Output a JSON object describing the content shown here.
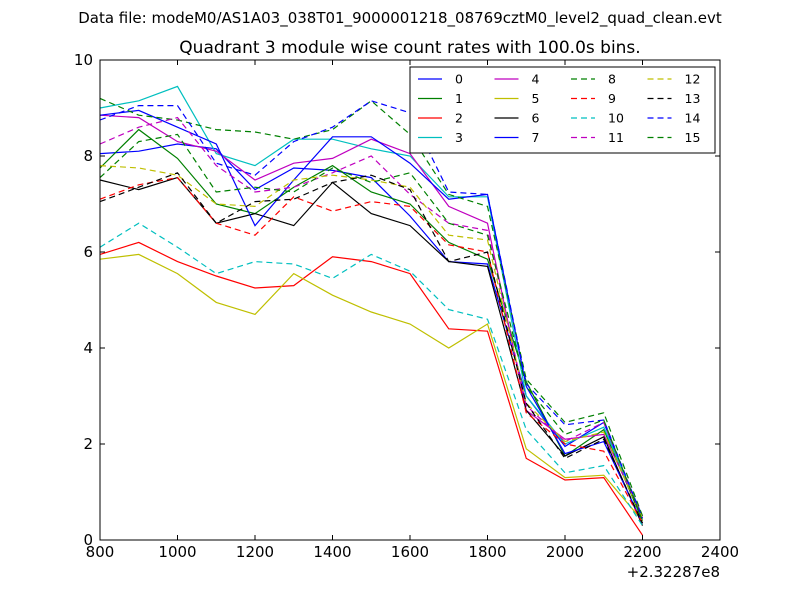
{
  "figure": {
    "suptitle": "Data file: modeM0/AS1A03_038T01_9000001218_08769cztM0_level2_quad_clean.evt"
  },
  "chart_data": {
    "type": "line",
    "title": "Quadrant 3 module wise count rates with 100.0s bins.",
    "xlabel": "",
    "ylabel": "",
    "xlim": [
      800,
      2400
    ],
    "ylim": [
      0,
      10
    ],
    "x_offset_label": "+2.32287e8",
    "xticks": [
      "800",
      "1000",
      "1200",
      "1400",
      "1600",
      "1800",
      "2000",
      "2200",
      "2400"
    ],
    "yticks": [
      "0",
      "2",
      "4",
      "6",
      "8",
      "10"
    ],
    "grid": false,
    "legend_position": "top-right",
    "legend_columns": 4,
    "x": [
      800,
      900,
      1000,
      1100,
      1200,
      1300,
      1400,
      1500,
      1600,
      1700,
      1800,
      1900,
      2000,
      2100,
      2200
    ],
    "series": [
      {
        "name": "0",
        "color": "#0000ff",
        "dash": false,
        "values": [
          8.05,
          8.1,
          8.25,
          8.15,
          7.3,
          7.75,
          7.7,
          7.55,
          6.75,
          5.8,
          5.75,
          3.0,
          1.95,
          2.45,
          0.4
        ]
      },
      {
        "name": "1",
        "color": "#008000",
        "dash": false,
        "values": [
          7.75,
          8.55,
          7.95,
          7.0,
          6.8,
          7.35,
          7.8,
          7.25,
          7.0,
          6.2,
          5.85,
          3.3,
          1.75,
          2.3,
          0.4
        ]
      },
      {
        "name": "2",
        "color": "#ff0000",
        "dash": false,
        "values": [
          5.95,
          6.2,
          5.8,
          5.5,
          5.25,
          5.3,
          5.9,
          5.8,
          5.55,
          4.4,
          4.35,
          1.7,
          1.25,
          1.3,
          0.1
        ]
      },
      {
        "name": "3",
        "color": "#00bfbf",
        "dash": false,
        "values": [
          9.0,
          9.15,
          9.45,
          8.05,
          7.8,
          8.35,
          8.35,
          8.15,
          8.0,
          7.15,
          7.15,
          3.0,
          2.0,
          2.35,
          0.5
        ]
      },
      {
        "name": "4",
        "color": "#bf00bf",
        "dash": false,
        "values": [
          8.85,
          8.8,
          8.3,
          8.1,
          7.5,
          7.85,
          7.95,
          8.35,
          8.05,
          6.95,
          6.6,
          2.7,
          2.1,
          2.2,
          0.5
        ]
      },
      {
        "name": "5",
        "color": "#bfbf00",
        "dash": false,
        "values": [
          5.85,
          5.95,
          5.55,
          4.95,
          4.7,
          5.55,
          5.1,
          4.75,
          4.5,
          4.0,
          4.5,
          1.9,
          1.3,
          1.35,
          0.4
        ]
      },
      {
        "name": "6",
        "color": "#000000",
        "dash": false,
        "values": [
          7.5,
          7.3,
          7.55,
          6.6,
          6.8,
          6.55,
          7.45,
          6.8,
          6.55,
          5.8,
          5.7,
          2.7,
          1.75,
          2.15,
          0.3
        ]
      },
      {
        "name": "7",
        "color": "#0000ff",
        "dash": false,
        "values": [
          8.85,
          8.95,
          8.6,
          8.25,
          6.55,
          7.5,
          8.4,
          8.4,
          7.85,
          7.1,
          7.2,
          3.2,
          1.8,
          2.05,
          0.35
        ]
      },
      {
        "name": "8",
        "color": "#008000",
        "dash": true,
        "values": [
          9.2,
          8.85,
          8.75,
          8.55,
          8.5,
          8.35,
          8.55,
          9.15,
          8.45,
          7.2,
          6.95,
          3.35,
          2.45,
          2.65,
          0.5
        ]
      },
      {
        "name": "9",
        "color": "#ff0000",
        "dash": true,
        "values": [
          7.1,
          7.4,
          7.55,
          6.6,
          6.35,
          7.15,
          6.85,
          7.05,
          6.95,
          6.15,
          6.0,
          2.65,
          2.0,
          1.85,
          0.35
        ]
      },
      {
        "name": "10",
        "color": "#00bfbf",
        "dash": true,
        "values": [
          6.1,
          6.6,
          6.1,
          5.55,
          5.8,
          5.75,
          5.45,
          5.95,
          5.6,
          4.8,
          4.6,
          2.3,
          1.4,
          1.55,
          0.3
        ]
      },
      {
        "name": "11",
        "color": "#bf00bf",
        "dash": true,
        "values": [
          8.25,
          8.6,
          8.8,
          7.8,
          7.25,
          7.35,
          7.65,
          8.0,
          7.2,
          6.6,
          6.45,
          2.8,
          2.05,
          2.45,
          0.45
        ]
      },
      {
        "name": "12",
        "color": "#bfbf00",
        "dash": true,
        "values": [
          7.8,
          7.75,
          7.6,
          7.0,
          6.95,
          7.5,
          7.6,
          7.5,
          7.35,
          6.35,
          6.25,
          2.85,
          2.05,
          2.25,
          0.45
        ]
      },
      {
        "name": "13",
        "color": "#000000",
        "dash": true,
        "values": [
          7.05,
          7.35,
          7.65,
          6.6,
          7.05,
          7.1,
          7.45,
          7.6,
          7.3,
          5.8,
          6.0,
          2.85,
          1.7,
          2.1,
          0.35
        ]
      },
      {
        "name": "14",
        "color": "#0000ff",
        "dash": true,
        "values": [
          8.75,
          9.05,
          9.05,
          7.85,
          7.6,
          8.3,
          8.6,
          9.15,
          8.9,
          7.25,
          7.2,
          3.25,
          2.4,
          2.5,
          0.45
        ]
      },
      {
        "name": "15",
        "color": "#008000",
        "dash": true,
        "values": [
          7.55,
          8.3,
          8.45,
          7.25,
          7.35,
          7.25,
          7.75,
          7.45,
          7.65,
          6.6,
          6.35,
          3.2,
          2.2,
          2.5,
          0.4
        ]
      }
    ]
  }
}
